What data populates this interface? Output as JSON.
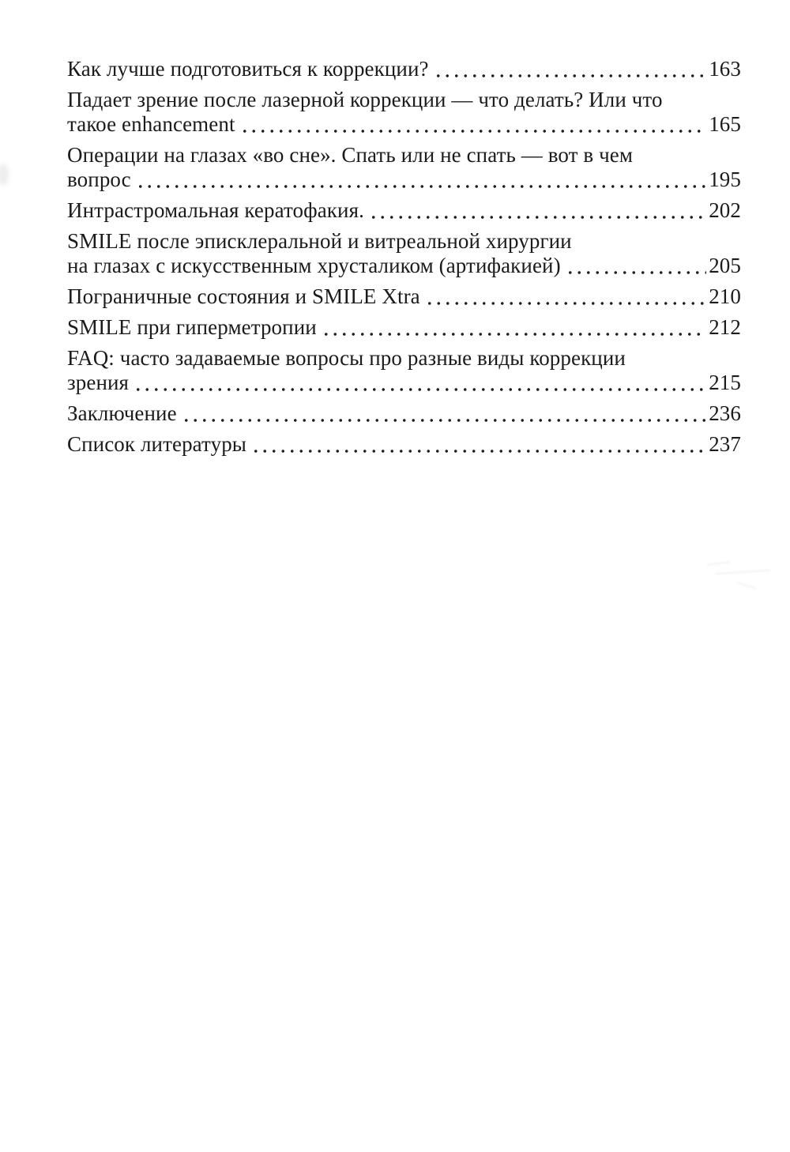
{
  "colors": {
    "background": "#ffffff",
    "text": "#1b1b1b"
  },
  "toc": {
    "entries": [
      {
        "lines": [
          "Как лучше подготовиться к коррекции?"
        ],
        "page": "163"
      },
      {
        "lines": [
          "Падает зрение после лазерной коррекции — что делать? Или что",
          "такое enhancement"
        ],
        "page": "165"
      },
      {
        "lines": [
          "Операции на глазах «во сне». Спать или не спать — вот в чем",
          "вопрос"
        ],
        "page": "195"
      },
      {
        "lines": [
          "Интрастромальная кератофакия."
        ],
        "page": "202"
      },
      {
        "lines": [
          "SMILE после эписклеральной и витреальной хирургии",
          "на глазах с искусственным хрусталиком (артифакией)"
        ],
        "page": "205"
      },
      {
        "lines": [
          "Пограничные состояния и SMILE Xtra"
        ],
        "page": "210"
      },
      {
        "lines": [
          "SMILE при гиперметропии"
        ],
        "page": "212"
      },
      {
        "lines": [
          "FAQ: часто задаваемые вопросы про разные виды коррекции",
          "зрения"
        ],
        "page": "215"
      },
      {
        "lines": [
          "Заключение"
        ],
        "page": "236"
      },
      {
        "lines": [
          "Список литературы"
        ],
        "page": "237"
      }
    ]
  }
}
